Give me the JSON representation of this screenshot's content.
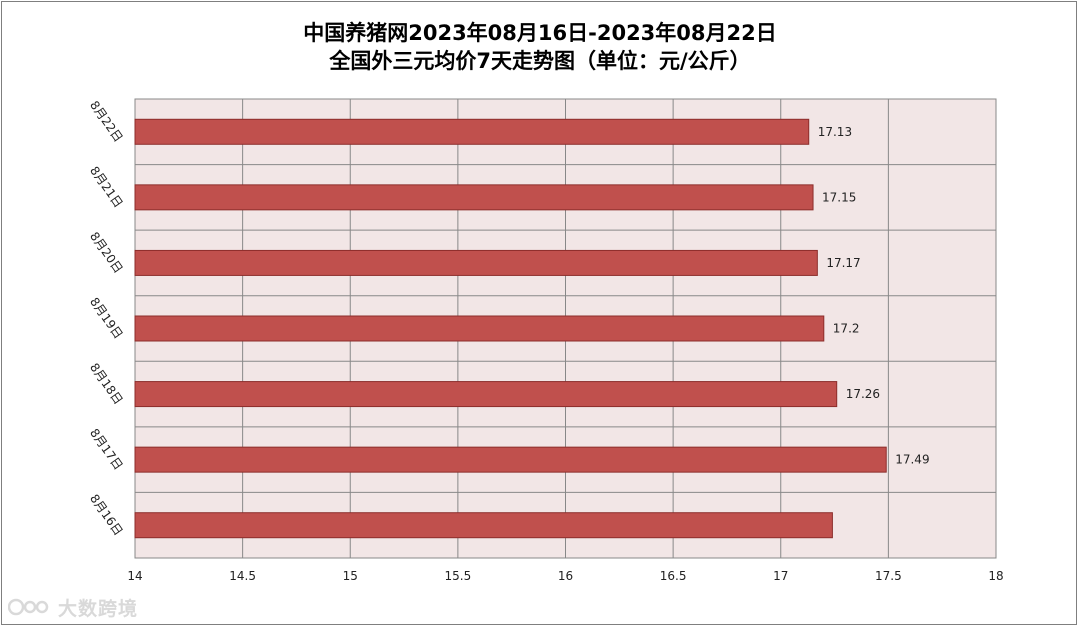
{
  "chart_data": {
    "type": "bar",
    "orientation": "horizontal",
    "title": "中国养猪网2023年08月16日-2023年08月22日",
    "subtitle": "全国外三元均价7天走势图（单位：元/公斤）",
    "categories": [
      "8月22日",
      "8月21日",
      "8月20日",
      "8月19日",
      "8月18日",
      "8月17日",
      "8月16日"
    ],
    "values": [
      17.13,
      17.15,
      17.17,
      17.2,
      17.26,
      17.49,
      17.24
    ],
    "data_labels": [
      "17.13",
      "17.15",
      "17.17",
      "17.2",
      "17.26",
      "17.49",
      ""
    ],
    "xlim": [
      14,
      18
    ],
    "xticks": [
      "14",
      "14.5",
      "15",
      "15.5",
      "16",
      "16.5",
      "17",
      "17.5",
      "18"
    ],
    "grid": true,
    "legend": "none",
    "bar_color": "#c0504d",
    "bar_edge_color": "#8c2d2b",
    "plot_background": "#f2e6e6",
    "grid_color": "#888888"
  },
  "watermark": {
    "text": "大数跨境",
    "icon": "dashuju-logo-icon"
  }
}
